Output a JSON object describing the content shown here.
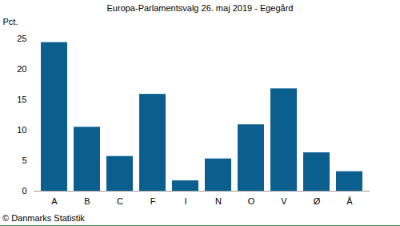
{
  "chart_data": {
    "type": "bar",
    "title": "Europa-Parlamentsvalg 26. maj 2019 - Egegård",
    "y_label": "Pct.",
    "caption": "© Danmarks Statistik",
    "categories": [
      "A",
      "B",
      "C",
      "F",
      "I",
      "N",
      "O",
      "V",
      "Ø",
      "Å"
    ],
    "values": [
      24.4,
      10.5,
      5.7,
      15.9,
      1.7,
      5.3,
      10.9,
      16.8,
      6.3,
      3.2
    ],
    "color": "#0b5f8f",
    "ylim": [
      0,
      25
    ],
    "yticks": [
      0,
      5,
      10,
      15,
      20,
      25
    ],
    "grid": false
  }
}
